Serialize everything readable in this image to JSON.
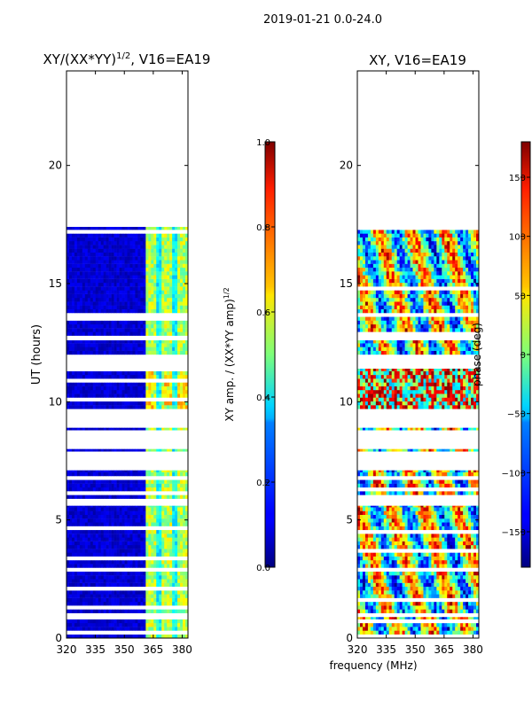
{
  "figure_title": "2019-01-21 0.0-24.0",
  "chart_data": [
    {
      "type": "heatmap",
      "title_prefix": "XY/(XX*YY)",
      "title_exp": "1/2",
      "title_suffix": ", V16=EA19",
      "xlabel": "",
      "ylabel": "UT (hours)",
      "xlim": [
        320,
        383
      ],
      "ylim": [
        0,
        24
      ],
      "xticks": [
        320,
        335,
        350,
        365,
        380
      ],
      "yticks": [
        0,
        5,
        10,
        15,
        20
      ],
      "data_bands_hours": [
        [
          0.0,
          0.9
        ],
        [
          0.9,
          5.6
        ],
        [
          5.9,
          7.1
        ],
        [
          7.9,
          8.0
        ],
        [
          8.8,
          8.9
        ],
        [
          9.7,
          11.4
        ],
        [
          12.0,
          12.6
        ],
        [
          12.8,
          17.4
        ]
      ],
      "bright_columns_mhz": [
        361,
        364,
        370,
        373,
        379,
        382
      ],
      "colorbar": {
        "label_prefix": "XY amp. / (XX*YY amp)",
        "label_exp": "1/2",
        "range": [
          0.0,
          1.0
        ],
        "ticks": [
          "0.0",
          "0.2",
          "0.4",
          "0.6",
          "0.8",
          "1.0"
        ]
      }
    },
    {
      "type": "heatmap",
      "title": "XY, V16=EA19",
      "xlabel": "",
      "ylabel": "",
      "xlim": [
        320,
        383
      ],
      "ylim": [
        0,
        24
      ],
      "xticks": [
        320,
        335,
        350,
        365,
        380
      ],
      "yticks": [
        0,
        5,
        10,
        15,
        20
      ],
      "data_bands_hours": [
        [
          0.0,
          0.9
        ],
        [
          0.9,
          5.6
        ],
        [
          5.9,
          7.1
        ],
        [
          7.9,
          8.0
        ],
        [
          8.8,
          8.9
        ],
        [
          9.7,
          11.4
        ],
        [
          12.0,
          12.6
        ],
        [
          12.8,
          17.4
        ]
      ],
      "colorbar": {
        "label": "phase (deg)",
        "range": [
          -180,
          180
        ],
        "ticks": [
          "−150",
          "−100",
          "−50",
          "0",
          "50",
          "100",
          "150"
        ]
      }
    }
  ],
  "shared_xlabel": "frequency (MHz)"
}
